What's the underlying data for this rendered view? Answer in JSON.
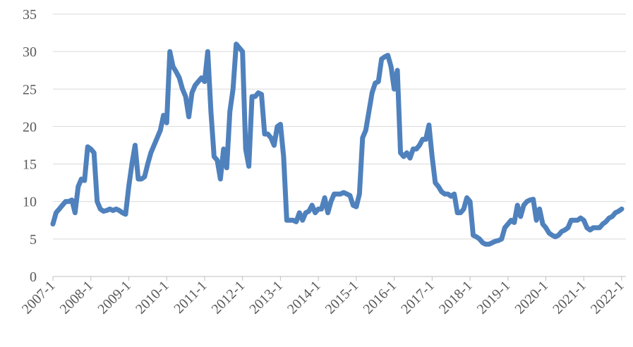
{
  "chart_data": {
    "type": "line",
    "color": "#4f81bd",
    "grid": true,
    "ylim": [
      0,
      35
    ],
    "yticks": [
      0,
      5,
      10,
      15,
      20,
      25,
      30,
      35
    ],
    "categories": [
      "2007-1",
      null,
      null,
      null,
      null,
      null,
      null,
      null,
      null,
      null,
      null,
      null,
      "2008-1",
      null,
      null,
      null,
      null,
      null,
      null,
      null,
      null,
      null,
      null,
      null,
      "2009-1",
      null,
      null,
      null,
      null,
      null,
      null,
      null,
      null,
      null,
      null,
      null,
      "2010-1",
      null,
      null,
      null,
      null,
      null,
      null,
      null,
      null,
      null,
      null,
      null,
      "2011-1",
      null,
      null,
      null,
      null,
      null,
      null,
      null,
      null,
      null,
      null,
      null,
      "2012-1",
      null,
      null,
      null,
      null,
      null,
      null,
      null,
      null,
      null,
      null,
      null,
      "2013-1",
      null,
      null,
      null,
      null,
      null,
      null,
      null,
      null,
      null,
      null,
      null,
      "2014-1",
      null,
      null,
      null,
      null,
      null,
      null,
      null,
      null,
      null,
      null,
      null,
      "2015-1",
      null,
      null,
      null,
      null,
      null,
      null,
      null,
      null,
      null,
      null,
      null,
      "2016-1",
      null,
      null,
      null,
      null,
      null,
      null,
      null,
      null,
      null,
      null,
      null,
      "2017-1",
      null,
      null,
      null,
      null,
      null,
      null,
      null,
      null,
      null,
      null,
      null,
      "2018-1",
      null,
      null,
      null,
      null,
      null,
      null,
      null,
      null,
      null,
      null,
      null,
      "2019-1",
      null,
      null,
      null,
      null,
      null,
      null,
      null,
      null,
      null,
      null,
      null,
      "2020-1",
      null,
      null,
      null,
      null,
      null,
      null,
      null,
      null,
      null,
      null,
      null,
      "2021-1",
      null,
      null,
      null,
      null,
      null,
      null,
      null,
      null,
      null,
      null,
      null,
      "2022-1"
    ],
    "values": [
      7,
      8.5,
      9,
      9.5,
      10,
      10,
      10.2,
      8.5,
      12,
      13,
      12.8,
      17.3,
      17,
      16.5,
      10,
      9,
      8.7,
      8.8,
      9,
      8.8,
      9,
      8.8,
      8.5,
      8.3,
      12,
      15,
      17.5,
      13,
      13,
      13.3,
      15,
      16.5,
      17.5,
      18.5,
      19.5,
      21.5,
      20.5,
      30,
      28,
      27.3,
      26.5,
      25,
      24,
      21.3,
      24.5,
      25.5,
      26,
      26.5,
      26,
      30,
      22,
      16,
      15.5,
      13,
      17,
      14.5,
      22,
      25,
      31,
      30.5,
      30,
      17,
      14.7,
      24,
      24,
      24.5,
      24.3,
      19,
      19,
      18.5,
      17.5,
      20,
      20.3,
      16,
      7.5,
      7.5,
      7.5,
      7.3,
      8.5,
      7.5,
      8.5,
      8.7,
      9.5,
      8.5,
      9,
      9,
      10.5,
      8.5,
      10,
      11,
      11,
      11,
      11.2,
      11,
      10.8,
      9.5,
      9.3,
      11,
      18.5,
      19.5,
      22,
      24.5,
      25.8,
      26,
      29,
      29.3,
      29.5,
      28,
      25,
      27.5,
      16.5,
      16,
      16.5,
      15.8,
      17,
      17,
      17.5,
      18.3,
      18.3,
      20.2,
      16,
      12.5,
      12,
      11.3,
      11,
      11,
      10.7,
      11,
      8.5,
      8.5,
      9,
      10.5,
      10,
      5.5,
      5.3,
      5,
      4.5,
      4.3,
      4.3,
      4.5,
      4.7,
      4.8,
      5,
      6.5,
      7,
      7.5,
      7.2,
      9.5,
      8,
      9.5,
      10,
      10.2,
      10.3,
      7.5,
      9,
      7,
      6.5,
      5.8,
      5.5,
      5.3,
      5.5,
      6,
      6.2,
      6.5,
      7.5,
      7.5,
      7.5,
      7.8,
      7.5,
      6.5,
      6.2,
      6.5,
      6.5,
      6.5,
      7,
      7.3,
      7.8,
      8,
      8.5,
      8.7,
      9
    ]
  }
}
